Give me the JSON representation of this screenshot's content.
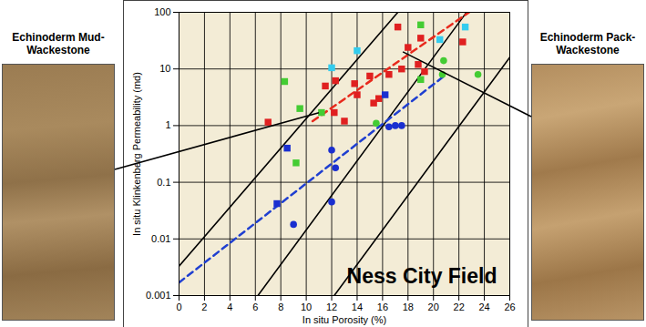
{
  "chart_data": {
    "type": "scatter",
    "title": "Ness City Field",
    "x_label": "In situ Porosity (%)",
    "y_label": "In situ Klinkenberg Permeability (md)",
    "xlim": [
      0,
      26
    ],
    "xticks": [
      0,
      2,
      4,
      6,
      8,
      10,
      12,
      14,
      16,
      18,
      20,
      22,
      24,
      26
    ],
    "ylim": [
      0.001,
      100
    ],
    "yticks": [
      0.001,
      0.01,
      0.1,
      1,
      10,
      100
    ],
    "log": "y",
    "grid": true,
    "series": [
      {
        "type": "line",
        "color": "#000000",
        "line_style": "solid",
        "x": [
          0,
          17.2
        ],
        "values": [
          0.0033,
          100
        ]
      },
      {
        "type": "line",
        "color": "#000000",
        "line_style": "solid",
        "x": [
          6.2,
          22.6
        ],
        "values": [
          0.001,
          100
        ]
      },
      {
        "type": "line",
        "color": "#000000",
        "line_style": "solid",
        "x": [
          12.2,
          26
        ],
        "values": [
          0.001,
          16
        ]
      },
      {
        "type": "line",
        "color": "#e8291c",
        "line_style": "dashed",
        "x": [
          10.5,
          22.8
        ],
        "values": [
          1.2,
          100
        ]
      },
      {
        "type": "line",
        "color": "#1f3fd0",
        "line_style": "dashed",
        "x": [
          0,
          21
        ],
        "values": [
          0.0017,
          8
        ]
      },
      {
        "type": "scatter",
        "color": "#e02020",
        "marker": "square",
        "x": [
          7,
          11.5,
          12.3,
          12.2,
          13,
          13.8,
          14,
          15,
          15.3,
          15.7,
          16.5,
          17.2,
          17.5,
          18,
          18.8,
          19,
          19.3,
          22.3
        ],
        "values": [
          1.15,
          5,
          6.2,
          1.7,
          1.2,
          5.5,
          3.5,
          7.5,
          2.5,
          3,
          8,
          55,
          10,
          24,
          12,
          35,
          9,
          30
        ]
      },
      {
        "type": "scatter",
        "color": "#44cc33",
        "marker": "square",
        "x": [
          8.3,
          9.5,
          9.2,
          11.2,
          19,
          19
        ],
        "values": [
          6,
          2,
          0.22,
          1.7,
          60,
          6.5
        ]
      },
      {
        "type": "scatter",
        "color": "#33ccee",
        "marker": "square",
        "x": [
          12,
          14,
          20.5,
          22.5
        ],
        "values": [
          10.5,
          21,
          33,
          55
        ]
      },
      {
        "type": "scatter",
        "color": "#1a2fd0",
        "marker": "square",
        "x": [
          7.7,
          8.5,
          16.2
        ],
        "values": [
          0.042,
          0.4,
          3.5
        ]
      },
      {
        "type": "scatter",
        "color": "#1a2fd0",
        "marker": "circle",
        "x": [
          9,
          12,
          12.3,
          12,
          16.5,
          17,
          17.5
        ],
        "values": [
          0.018,
          0.37,
          0.18,
          0.045,
          0.95,
          1,
          1
        ]
      },
      {
        "type": "scatter",
        "color": "#44cc33",
        "marker": "circle",
        "x": [
          15.5,
          20.7,
          20.8,
          23.5
        ],
        "values": [
          1.1,
          8,
          14,
          8
        ]
      }
    ],
    "annotations": [
      {
        "text": "Echinoderm Mud-Wackestone",
        "x": 11.1,
        "y": 1.6
      },
      {
        "text": "Echinoderm Pack-Wackestone",
        "x": 17.7,
        "y": 19
      }
    ]
  }
}
